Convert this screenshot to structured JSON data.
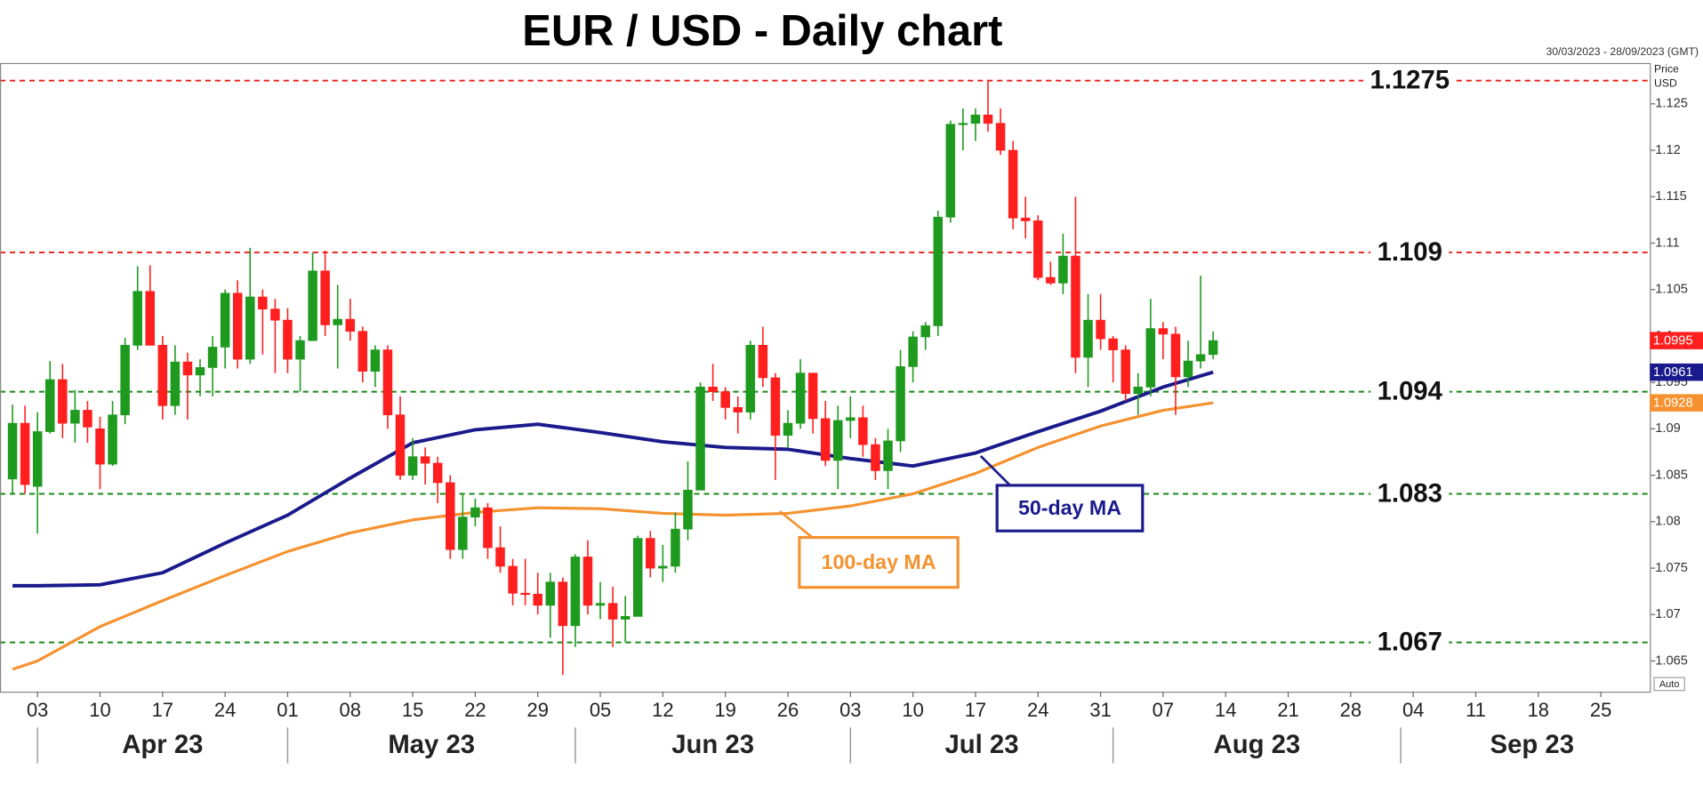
{
  "chart_data": {
    "type": "candlestick",
    "title": "EUR / USD - Daily chart",
    "subtitle": "30/03/2023 - 28/09/2023 (GMT)",
    "y_axis_label": [
      "Price",
      "USD"
    ],
    "scale_mode": "Auto",
    "up_color": "#1e9a1e",
    "down_color": "#ff1f1f",
    "x": [
      "2023-03-30",
      "2023-03-31",
      "2023-04-03",
      "2023-04-04",
      "2023-04-05",
      "2023-04-06",
      "2023-04-07",
      "2023-04-10",
      "2023-04-11",
      "2023-04-12",
      "2023-04-13",
      "2023-04-14",
      "2023-04-17",
      "2023-04-18",
      "2023-04-19",
      "2023-04-20",
      "2023-04-21",
      "2023-04-24",
      "2023-04-25",
      "2023-04-26",
      "2023-04-27",
      "2023-04-28",
      "2023-05-01",
      "2023-05-02",
      "2023-05-03",
      "2023-05-04",
      "2023-05-05",
      "2023-05-08",
      "2023-05-09",
      "2023-05-10",
      "2023-05-11",
      "2023-05-12",
      "2023-05-15",
      "2023-05-16",
      "2023-05-17",
      "2023-05-18",
      "2023-05-19",
      "2023-05-22",
      "2023-05-23",
      "2023-05-24",
      "2023-05-25",
      "2023-05-26",
      "2023-05-29",
      "2023-05-30",
      "2023-05-31",
      "2023-06-01",
      "2023-06-02",
      "2023-06-05",
      "2023-06-06",
      "2023-06-07",
      "2023-06-08",
      "2023-06-09",
      "2023-06-12",
      "2023-06-13",
      "2023-06-14",
      "2023-06-15",
      "2023-06-16",
      "2023-06-19",
      "2023-06-20",
      "2023-06-21",
      "2023-06-22",
      "2023-06-23",
      "2023-06-26",
      "2023-06-27",
      "2023-06-28",
      "2023-06-29",
      "2023-06-30",
      "2023-07-03",
      "2023-07-04",
      "2023-07-05",
      "2023-07-06",
      "2023-07-07",
      "2023-07-10",
      "2023-07-11",
      "2023-07-12",
      "2023-07-13",
      "2023-07-14",
      "2023-07-17",
      "2023-07-18",
      "2023-07-19",
      "2023-07-20",
      "2023-07-21",
      "2023-07-24",
      "2023-07-25",
      "2023-07-26",
      "2023-07-27",
      "2023-07-28",
      "2023-07-31",
      "2023-08-01",
      "2023-08-02",
      "2023-08-03",
      "2023-08-04",
      "2023-08-07",
      "2023-08-08",
      "2023-08-09",
      "2023-08-10",
      "2023-08-11"
    ],
    "open": [
      1.0846,
      1.0906,
      1.0838,
      1.0897,
      1.0953,
      1.0906,
      1.092,
      1.09,
      1.0862,
      1.0915,
      1.099,
      1.1048,
      1.099,
      1.0925,
      1.0972,
      1.0958,
      1.0966,
      1.0988,
      1.1046,
      1.0975,
      1.1042,
      1.1029,
      1.1017,
      1.0975,
      1.0995,
      1.107,
      1.1012,
      1.1018,
      1.1005,
      1.0962,
      1.0985,
      1.0915,
      1.085,
      1.087,
      1.0863,
      1.0842,
      1.077,
      1.0805,
      1.0815,
      1.0772,
      1.0752,
      1.0723,
      1.0722,
      1.071,
      1.0735,
      1.0688,
      1.0762,
      1.071,
      1.0712,
      1.0695,
      1.0698,
      1.0782,
      1.075,
      1.0752,
      1.0792,
      1.0834,
      1.0945,
      1.094,
      1.0923,
      1.0918,
      1.099,
      1.0955,
      1.0893,
      1.0906,
      1.096,
      1.0911,
      1.0866,
      1.0909,
      1.0912,
      1.0883,
      1.0855,
      1.0887,
      1.0967,
      1.0999,
      1.1011,
      1.1128,
      1.1228,
      1.1229,
      1.1238,
      1.1229,
      1.12,
      1.1127,
      1.1124,
      1.1063,
      1.1057,
      1.1086,
      1.0977,
      1.1017,
      1.0997,
      1.0985,
      1.0938,
      1.0945,
      1.1008,
      1.1002,
      1.0956,
      1.0973,
      1.098
    ],
    "high": [
      1.0926,
      1.0925,
      1.0918,
      1.0973,
      1.097,
      1.0942,
      1.093,
      1.0913,
      1.093,
      1.0998,
      1.1075,
      1.1076,
      1.1,
      1.099,
      1.0982,
      1.0975,
      1.1,
      1.105,
      1.106,
      1.1095,
      1.105,
      1.104,
      1.103,
      1.1,
      1.109,
      1.1092,
      1.1055,
      1.104,
      1.101,
      1.099,
      1.099,
      1.0935,
      1.089,
      1.088,
      1.087,
      1.085,
      1.083,
      1.0825,
      1.082,
      1.0795,
      1.076,
      1.076,
      1.0745,
      1.0745,
      1.074,
      1.0765,
      1.078,
      1.0735,
      1.073,
      1.072,
      1.0785,
      1.079,
      1.0775,
      1.081,
      1.0865,
      1.095,
      1.097,
      1.0945,
      1.0935,
      1.0995,
      1.101,
      1.096,
      1.092,
      1.0975,
      1.096,
      1.093,
      1.0925,
      1.0935,
      1.0925,
      1.089,
      1.09,
      1.0985,
      1.1005,
      1.1015,
      1.1135,
      1.1232,
      1.1245,
      1.1245,
      1.1276,
      1.1245,
      1.121,
      1.115,
      1.113,
      1.108,
      1.111,
      1.115,
      1.1045,
      1.1045,
      1.1,
      1.099,
      1.096,
      1.104,
      1.1015,
      1.101,
      1.0995,
      1.1065,
      1.1005
    ],
    "low": [
      1.083,
      1.083,
      1.0787,
      1.0895,
      1.089,
      1.0885,
      1.0885,
      1.0835,
      1.086,
      1.0905,
      1.0985,
      1.099,
      1.091,
      1.0915,
      1.091,
      1.0935,
      1.0935,
      1.0965,
      1.0965,
      1.097,
      1.098,
      1.096,
      1.096,
      1.094,
      1.0995,
      1.1,
      1.0965,
      1.0995,
      1.095,
      1.0945,
      1.09,
      1.0845,
      1.0845,
      1.084,
      1.082,
      1.076,
      1.076,
      1.0795,
      1.076,
      1.0745,
      1.071,
      1.071,
      1.07,
      1.0675,
      1.0635,
      1.0665,
      1.07,
      1.0695,
      1.0665,
      1.067,
      1.0698,
      1.074,
      1.0735,
      1.0745,
      1.078,
      1.0835,
      1.093,
      1.091,
      1.0895,
      1.091,
      1.0945,
      1.0845,
      1.088,
      1.09,
      1.0895,
      1.086,
      1.0835,
      1.089,
      1.087,
      1.0845,
      1.0835,
      1.0875,
      1.095,
      1.0985,
      1.1,
      1.1122,
      1.12,
      1.121,
      1.122,
      1.1195,
      1.1115,
      1.1105,
      1.106,
      1.1055,
      1.1045,
      1.096,
      1.0945,
      1.0985,
      1.095,
      1.093,
      1.0915,
      1.0935,
      1.0975,
      1.0915,
      1.0945,
      1.0965,
      1.0975
    ],
    "close": [
      1.0906,
      1.084,
      1.0897,
      1.0953,
      1.0906,
      1.092,
      1.0902,
      1.0862,
      1.0915,
      1.099,
      1.1048,
      1.099,
      1.0925,
      1.0972,
      1.0958,
      1.0966,
      1.0988,
      1.1046,
      1.0975,
      1.1042,
      1.1029,
      1.1017,
      1.0975,
      1.0995,
      1.107,
      1.1012,
      1.1018,
      1.1005,
      1.0962,
      1.0985,
      1.0915,
      1.085,
      1.087,
      1.0863,
      1.0842,
      1.077,
      1.0805,
      1.0815,
      1.0772,
      1.0752,
      1.0723,
      1.0722,
      1.071,
      1.0735,
      1.0688,
      1.0762,
      1.071,
      1.0712,
      1.0695,
      1.0698,
      1.0782,
      1.075,
      1.0752,
      1.0792,
      1.0834,
      1.0945,
      1.094,
      1.0923,
      1.0918,
      1.099,
      1.0955,
      1.0893,
      1.0906,
      1.096,
      1.0911,
      1.0866,
      1.0909,
      1.0912,
      1.0883,
      1.0855,
      1.0887,
      1.0967,
      1.0999,
      1.1011,
      1.1128,
      1.1228,
      1.1229,
      1.1238,
      1.1229,
      1.12,
      1.1127,
      1.1124,
      1.1063,
      1.1057,
      1.1086,
      1.0977,
      1.1017,
      1.0997,
      1.0985,
      1.0938,
      1.0945,
      1.1008,
      1.1002,
      1.0956,
      1.0973,
      1.098,
      1.0995
    ],
    "series": [
      {
        "name": "50-day MA",
        "color": "#1a1a8c",
        "x": [
          "2023-03-30",
          "2023-04-03",
          "2023-04-10",
          "2023-04-17",
          "2023-04-24",
          "2023-05-01",
          "2023-05-08",
          "2023-05-15",
          "2023-05-22",
          "2023-05-29",
          "2023-06-05",
          "2023-06-12",
          "2023-06-19",
          "2023-06-26",
          "2023-07-03",
          "2023-07-10",
          "2023-07-17",
          "2023-07-24",
          "2023-07-31",
          "2023-08-07",
          "2023-08-11"
        ],
        "values": [
          1.0731,
          1.0731,
          1.0732,
          1.0745,
          1.0777,
          1.0807,
          1.0847,
          1.0885,
          1.0899,
          1.0905,
          1.0896,
          1.0886,
          1.088,
          1.0878,
          1.0868,
          1.086,
          1.0874,
          1.0897,
          1.0919,
          1.0945,
          1.0961
        ]
      },
      {
        "name": "100-day MA",
        "color": "#f5922f",
        "x": [
          "2023-03-30",
          "2023-04-03",
          "2023-04-10",
          "2023-04-17",
          "2023-04-24",
          "2023-05-01",
          "2023-05-08",
          "2023-05-15",
          "2023-05-22",
          "2023-05-29",
          "2023-06-05",
          "2023-06-12",
          "2023-06-19",
          "2023-06-26",
          "2023-07-03",
          "2023-07-10",
          "2023-07-17",
          "2023-07-24",
          "2023-07-31",
          "2023-08-07",
          "2023-08-11"
        ],
        "values": [
          1.0641,
          1.065,
          1.0687,
          1.0715,
          1.0742,
          1.0768,
          1.0788,
          1.0802,
          1.081,
          1.0815,
          1.0814,
          1.0809,
          1.0807,
          1.0809,
          1.0817,
          1.083,
          1.0852,
          1.088,
          1.0903,
          1.092,
          1.0928
        ]
      }
    ],
    "price_tags": [
      {
        "value": 1.0995,
        "label": "1.0995",
        "color": "#ff1f1f"
      },
      {
        "value": 1.0961,
        "label": "1.0961",
        "color": "#1a1a8c"
      },
      {
        "value": 1.0928,
        "label": "1.0928",
        "color": "#f5922f"
      }
    ],
    "levels": [
      {
        "value": 1.1275,
        "label": "1.1275",
        "color": "#e8201a"
      },
      {
        "value": 1.109,
        "label": "1.109",
        "color": "#e8201a"
      },
      {
        "value": 1.094,
        "label": "1.094",
        "color": "#1a8a1a"
      },
      {
        "value": 1.083,
        "label": "1.083",
        "color": "#1a8a1a"
      },
      {
        "value": 1.067,
        "label": "1.067",
        "color": "#1a8a1a"
      }
    ],
    "ylim": [
      1.0617,
      1.1294
    ],
    "yticks": [
      1.065,
      1.07,
      1.075,
      1.08,
      1.085,
      1.09,
      1.095,
      1.1,
      1.105,
      1.11,
      1.115,
      1.12,
      1.125
    ],
    "xlim": [
      "2023-03-29",
      "2023-09-29"
    ],
    "xticks": [
      {
        "value": "2023-04-03",
        "label": "03"
      },
      {
        "value": "2023-04-10",
        "label": "10"
      },
      {
        "value": "2023-04-17",
        "label": "17"
      },
      {
        "value": "2023-04-24",
        "label": "24"
      },
      {
        "value": "2023-05-01",
        "label": "01"
      },
      {
        "value": "2023-05-08",
        "label": "08"
      },
      {
        "value": "2023-05-15",
        "label": "15"
      },
      {
        "value": "2023-05-22",
        "label": "22"
      },
      {
        "value": "2023-05-29",
        "label": "29"
      },
      {
        "value": "2023-06-05",
        "label": "05"
      },
      {
        "value": "2023-06-12",
        "label": "12"
      },
      {
        "value": "2023-06-19",
        "label": "19"
      },
      {
        "value": "2023-06-26",
        "label": "26"
      },
      {
        "value": "2023-07-03",
        "label": "03"
      },
      {
        "value": "2023-07-10",
        "label": "10"
      },
      {
        "value": "2023-07-17",
        "label": "17"
      },
      {
        "value": "2023-07-24",
        "label": "24"
      },
      {
        "value": "2023-07-31",
        "label": "31"
      },
      {
        "value": "2023-08-07",
        "label": "07"
      },
      {
        "value": "2023-08-14",
        "label": "14"
      },
      {
        "value": "2023-08-21",
        "label": "21"
      },
      {
        "value": "2023-08-28",
        "label": "28"
      },
      {
        "value": "2023-09-04",
        "label": "04"
      },
      {
        "value": "2023-09-11",
        "label": "11"
      },
      {
        "value": "2023-09-18",
        "label": "18"
      },
      {
        "value": "2023-09-25",
        "label": "25"
      }
    ],
    "months": [
      {
        "value": "2023-04",
        "label": "Apr 23"
      },
      {
        "value": "2023-05",
        "label": "May 23"
      },
      {
        "value": "2023-06",
        "label": "Jun 23"
      },
      {
        "value": "2023-07",
        "label": "Jul 23"
      },
      {
        "value": "2023-08",
        "label": "Aug 23"
      },
      {
        "value": "2023-09",
        "label": "Sep 23"
      }
    ]
  }
}
